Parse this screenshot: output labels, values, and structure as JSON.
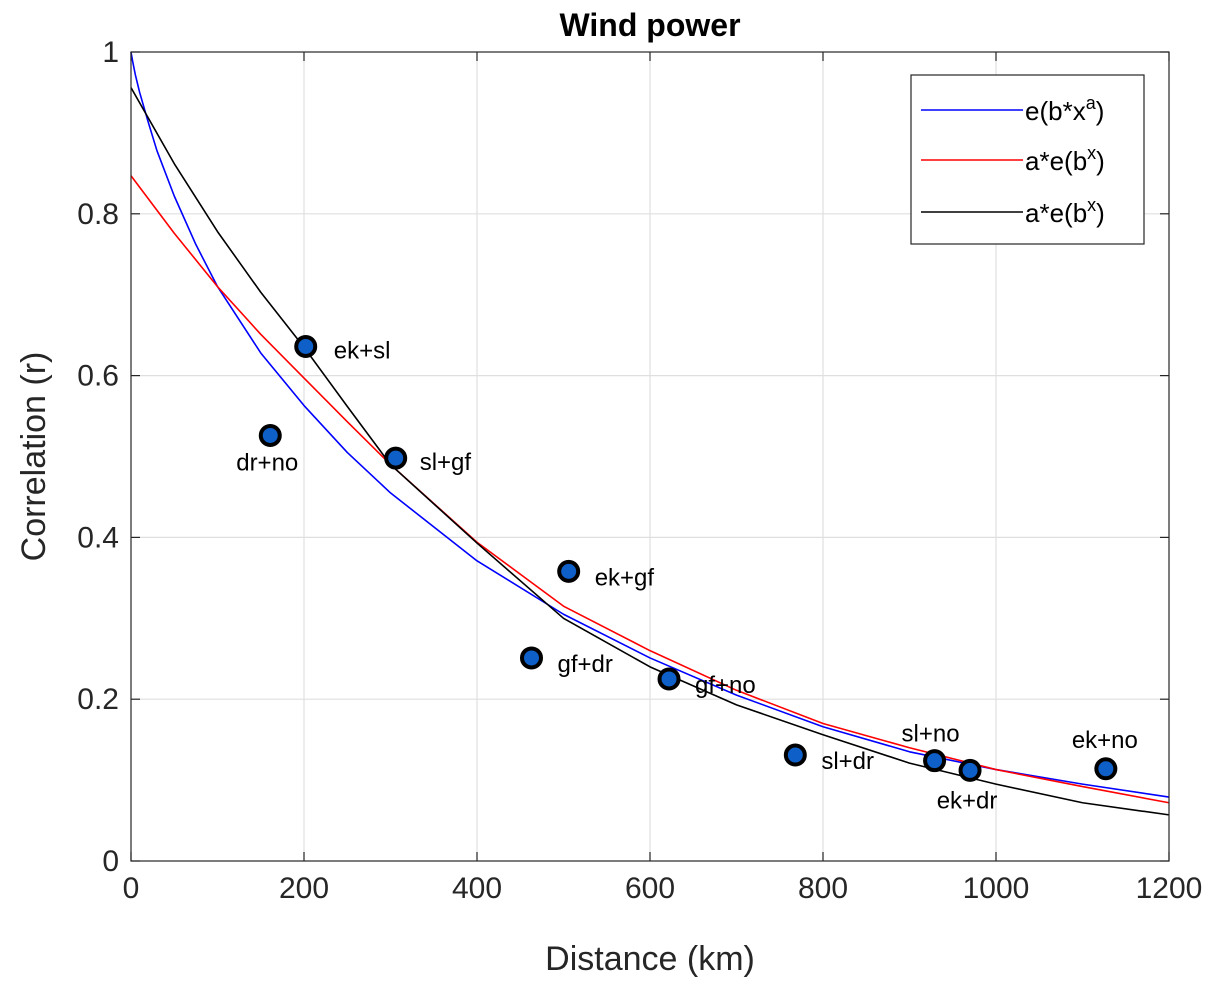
{
  "chart_data": {
    "type": "scatter",
    "title": "Wind power",
    "xlabel": "Distance (km)",
    "ylabel": "Correlation (r)",
    "xlim": [
      0,
      1200
    ],
    "ylim": [
      0,
      1
    ],
    "xticks": [
      0,
      200,
      400,
      600,
      800,
      1000,
      1200
    ],
    "xtick_labels": [
      "0",
      "200",
      "400",
      "600",
      "800",
      "1000",
      "1200"
    ],
    "yticks": [
      0,
      0.2,
      0.4,
      0.6,
      0.8,
      1
    ],
    "ytick_labels": [
      "0",
      "0.2",
      "0.4",
      "0.6",
      "0.8",
      "1"
    ],
    "grid": true,
    "legend_position": "top-right",
    "points": [
      {
        "label": "ek+sl",
        "x": 202,
        "y": 0.636
      },
      {
        "label": "dr+no",
        "x": 161,
        "y": 0.526
      },
      {
        "label": "sl+gf",
        "x": 306,
        "y": 0.498
      },
      {
        "label": "ek+gf",
        "x": 506,
        "y": 0.358
      },
      {
        "label": "gf+dr",
        "x": 463,
        "y": 0.251
      },
      {
        "label": "gf+no",
        "x": 622,
        "y": 0.225
      },
      {
        "label": "sl+dr",
        "x": 768,
        "y": 0.131
      },
      {
        "label": "sl+no",
        "x": 929,
        "y": 0.124
      },
      {
        "label": "ek+dr",
        "x": 970,
        "y": 0.112
      },
      {
        "label": "ek+no",
        "x": 1127,
        "y": 0.114
      }
    ],
    "point_color": "#0f5fc8",
    "series": [
      {
        "name": "e(b*x^a)",
        "legend_base": "e(b*x",
        "legend_sup": "a",
        "legend_end": ")",
        "color": "#0000ff",
        "x": [
          0,
          2,
          5,
          10,
          20,
          30,
          50,
          75,
          100,
          150,
          200,
          250,
          300,
          400,
          500,
          600,
          700,
          800,
          900,
          1000,
          1100,
          1200
        ],
        "y": [
          1.0,
          0.988,
          0.972,
          0.95,
          0.913,
          0.878,
          0.822,
          0.762,
          0.71,
          0.628,
          0.563,
          0.505,
          0.455,
          0.371,
          0.305,
          0.251,
          0.205,
          0.166,
          0.135,
          0.113,
          0.095,
          0.079
        ]
      },
      {
        "name": "a*e(b^x)",
        "legend_base": "a*e(b",
        "legend_sup": "x",
        "legend_end": ")",
        "color": "#ff0000",
        "x": [
          0,
          50,
          100,
          150,
          200,
          250,
          300,
          400,
          500,
          600,
          700,
          800,
          900,
          1000,
          1100,
          1200
        ],
        "y": [
          0.847,
          0.776,
          0.71,
          0.651,
          0.597,
          0.543,
          0.49,
          0.394,
          0.315,
          0.26,
          0.211,
          0.17,
          0.14,
          0.113,
          0.092,
          0.072
        ]
      },
      {
        "name": "a*e(b^x)",
        "legend_base": "a*e(b",
        "legend_sup": "x",
        "legend_end": ")",
        "color": "#000000",
        "x": [
          0,
          50,
          100,
          150,
          200,
          250,
          300,
          400,
          500,
          600,
          700,
          800,
          900,
          1000,
          1100,
          1200
        ],
        "y": [
          0.956,
          0.862,
          0.778,
          0.703,
          0.635,
          0.562,
          0.49,
          0.393,
          0.3,
          0.24,
          0.193,
          0.156,
          0.121,
          0.095,
          0.072,
          0.057
        ]
      }
    ]
  }
}
